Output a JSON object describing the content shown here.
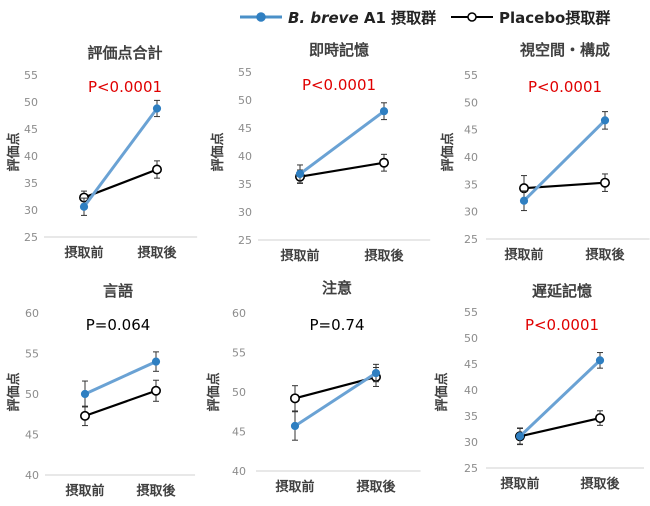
{
  "legend": [
    {
      "italic": "B. breve",
      "rest": " A1 摂取群",
      "color": "#4a90c8",
      "fill": "#2f7fc1"
    },
    {
      "italic": "",
      "rest": "Placebo摂取群",
      "color": "#000000",
      "fill": "#ffffff"
    }
  ],
  "colors": {
    "breve_line": "#6aa2d4",
    "breve_marker": "#2f7fc1",
    "placebo": "#000000",
    "sig": "#e00000",
    "nonsig": "#000000"
  },
  "chart_data": [
    {
      "type": "line",
      "title": "評価点合計",
      "ylabel": "評価点",
      "ylim": [
        25,
        55
      ],
      "yticks": [
        25,
        30,
        35,
        40,
        45,
        50,
        55
      ],
      "categories": [
        "摂取前",
        "摂取後"
      ],
      "p_text": "P<0.0001",
      "p_color": "sig",
      "series": [
        {
          "name": "B. breve A1 摂取群",
          "values": [
            30.6,
            48.8
          ],
          "err": [
            1.6,
            1.5
          ]
        },
        {
          "name": "Placebo摂取群",
          "values": [
            32.3,
            37.5
          ],
          "err": [
            1.2,
            1.6
          ]
        }
      ]
    },
    {
      "type": "line",
      "title": "即時記憶",
      "ylabel": "評価点",
      "ylim": [
        25,
        55
      ],
      "yticks": [
        25,
        30,
        35,
        40,
        45,
        50,
        55
      ],
      "categories": [
        "摂取前",
        "摂取後"
      ],
      "p_text": "P<0.0001",
      "p_color": "sig",
      "series": [
        {
          "name": "B. breve A1 摂取群",
          "values": [
            36.8,
            48.0
          ],
          "err": [
            1.6,
            1.5
          ]
        },
        {
          "name": "Placebo摂取群",
          "values": [
            36.3,
            38.8
          ],
          "err": [
            1.2,
            1.5
          ]
        }
      ]
    },
    {
      "type": "line",
      "title": "視空間・構成",
      "ylabel": "評価点",
      "ylim": [
        25,
        55
      ],
      "yticks": [
        25,
        30,
        35,
        40,
        45,
        50,
        55
      ],
      "categories": [
        "摂取前",
        "摂取後"
      ],
      "p_text": "P<0.0001",
      "p_color": "sig",
      "series": [
        {
          "name": "B. breve A1 摂取群",
          "values": [
            32.0,
            46.7
          ],
          "err": [
            1.8,
            1.6
          ]
        },
        {
          "name": "Placebo摂取群",
          "values": [
            34.3,
            35.3
          ],
          "err": [
            2.3,
            1.6
          ]
        }
      ]
    },
    {
      "type": "line",
      "title": "言語",
      "ylabel": "評価点",
      "ylim": [
        40,
        60
      ],
      "yticks": [
        40,
        45,
        50,
        55,
        60
      ],
      "categories": [
        "摂取前",
        "摂取後"
      ],
      "p_text": "P=0.064",
      "p_color": "nonsig",
      "series": [
        {
          "name": "B. breve A1 摂取群",
          "values": [
            50.0,
            54.0
          ],
          "err": [
            1.6,
            1.2
          ]
        },
        {
          "name": "Placebo摂取群",
          "values": [
            47.3,
            50.4
          ],
          "err": [
            1.2,
            1.3
          ]
        }
      ]
    },
    {
      "type": "line",
      "title": "注意",
      "ylabel": "評価点",
      "ylim": [
        40,
        60
      ],
      "yticks": [
        40,
        45,
        50,
        55,
        60
      ],
      "categories": [
        "摂取前",
        "摂取後"
      ],
      "p_text": "P=0.74",
      "p_color": "nonsig",
      "series": [
        {
          "name": "B. breve A1 摂取群",
          "values": [
            45.7,
            52.4
          ],
          "err": [
            1.8,
            1.1
          ]
        },
        {
          "name": "Placebo摂取群",
          "values": [
            49.2,
            51.9
          ],
          "err": [
            1.6,
            1.2
          ]
        }
      ]
    },
    {
      "type": "line",
      "title": "遅延記憶",
      "ylabel": "評価点",
      "ylim": [
        25,
        55
      ],
      "yticks": [
        25,
        30,
        35,
        40,
        45,
        50,
        55
      ],
      "categories": [
        "摂取前",
        "摂取後"
      ],
      "p_text": "P<0.0001",
      "p_color": "sig",
      "series": [
        {
          "name": "B. breve A1 摂取群",
          "values": [
            31.1,
            45.7
          ],
          "err": [
            1.6,
            1.5
          ]
        },
        {
          "name": "Placebo摂取群",
          "values": [
            31.1,
            34.6
          ],
          "err": [
            1.5,
            1.4
          ]
        }
      ]
    }
  ]
}
